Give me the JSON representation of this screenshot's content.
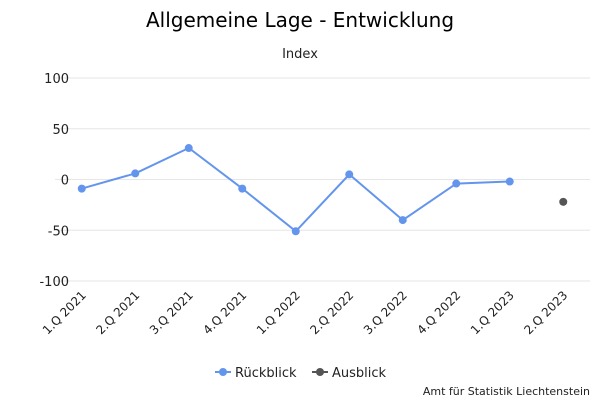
{
  "chart_data": {
    "type": "line",
    "title": "Allgemeine Lage - Entwicklung",
    "subtitle": "Index",
    "categories": [
      "1.Q 2021",
      "2.Q 2021",
      "3.Q 2021",
      "4.Q 2021",
      "1.Q 2022",
      "2.Q 2022",
      "3.Q 2022",
      "4.Q 2022",
      "1.Q 2023",
      "2.Q 2023"
    ],
    "yticks": [
      "100",
      "50",
      "0",
      "-50",
      "-100"
    ],
    "ylim": [
      -100,
      100
    ],
    "grid": true,
    "legend_position": "bottom",
    "series": [
      {
        "name": "Rückblick",
        "color": "#6495ED",
        "values": [
          -9,
          6,
          31,
          -9,
          -51,
          5,
          -40,
          -4,
          -2,
          null
        ]
      },
      {
        "name": "Ausblick",
        "color": "#555555",
        "values": [
          null,
          null,
          null,
          null,
          null,
          null,
          null,
          null,
          null,
          -22
        ]
      }
    ]
  },
  "credit": "Amt für Statistik Liechtenstein"
}
